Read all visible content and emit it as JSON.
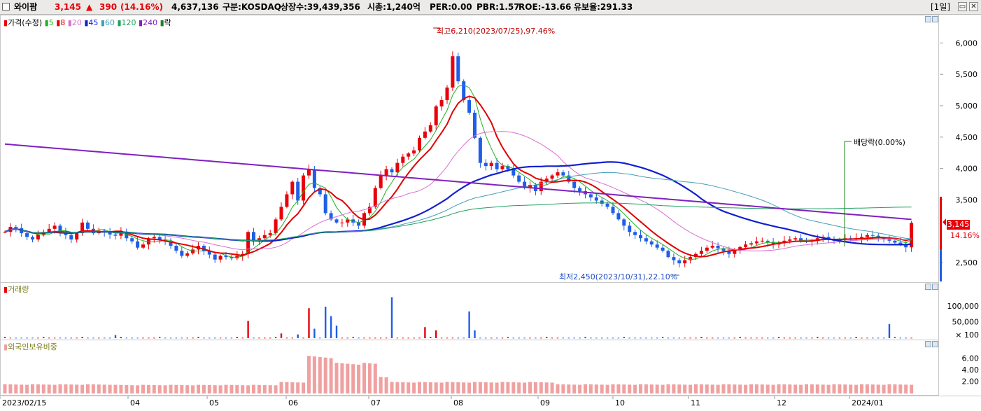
{
  "header": {
    "name": "와이팜",
    "price": "3,145",
    "change_arrow": "▲",
    "change": "390",
    "change_pct": "(14.16%)",
    "volume": "4,637,136",
    "market": "구분:KOSDAQ",
    "shares": "상장수:39,439,356",
    "mcap": "시총:1,240억",
    "per": "PER:0.00",
    "pbr": "PBR:1.57",
    "roe": "ROE:-13.66",
    "float": "유보율:291.33",
    "period": "[1일]",
    "btn_restore": "▭",
    "btn_close": "✕"
  },
  "legend": {
    "price": "가격(수정)",
    "ma5": "5",
    "ma8": "8",
    "ma20": "20",
    "ma45": "45",
    "ma60": "60",
    "ma120": "120",
    "ma240": "240",
    "ex": "락"
  },
  "colors": {
    "up": "#e8000b",
    "down": "#1e5ee8",
    "ma5": "#22b022",
    "ma8": "#e00000",
    "ma20": "#d870d0",
    "ma45": "#1020d0",
    "ma60": "#40a0b8",
    "ma120": "#20a060",
    "ma240": "#8020c0",
    "foreign": "#f0a0a0"
  },
  "annotations": {
    "high": "최고6,210(2023/07/25),97.46%",
    "low": "최저2,450(2023/10/31),22.10%",
    "dividend": "배당락(0.00%)"
  },
  "current": {
    "price_label": "3,145",
    "pct_label": "14.16%"
  },
  "panels": {
    "volume": "거래량",
    "foreign": "외국인보유비중"
  },
  "chart_data": [
    {
      "type": "candlestick",
      "title": "",
      "x_labels": [
        "2023/02/15",
        "04",
        "05",
        "06",
        "07",
        "08",
        "09",
        "10",
        "11",
        "12",
        "2024/01"
      ],
      "yticks": [
        "6,000",
        "5,500",
        "5,000",
        "4,500",
        "4,000",
        "3,500",
        "2,500"
      ],
      "ylim": [
        2200,
        6450
      ],
      "closes": [
        3000,
        3080,
        3060,
        2980,
        2920,
        2880,
        2960,
        3000,
        3050,
        3100,
        3000,
        2950,
        2880,
        2980,
        3150,
        3050,
        2980,
        3020,
        3000,
        2960,
        2940,
        3000,
        2900,
        2850,
        2750,
        2800,
        2900,
        2920,
        2880,
        2850,
        2780,
        2700,
        2620,
        2660,
        2720,
        2780,
        2700,
        2640,
        2560,
        2620,
        2600,
        2580,
        2620,
        2650,
        3000,
        2850,
        2900,
        2950,
        2980,
        3200,
        3400,
        3600,
        3800,
        3500,
        3900,
        4000,
        3700,
        3600,
        3300,
        3200,
        3150,
        3150,
        3200,
        3150,
        3100,
        3300,
        3400,
        3700,
        3900,
        4000,
        3950,
        4100,
        4200,
        4250,
        4300,
        4500,
        4600,
        4700,
        5000,
        5100,
        5300,
        5800,
        5400,
        5100,
        4900,
        4500,
        4100,
        4050,
        4100,
        4000,
        4050,
        4000,
        3900,
        3800,
        3700,
        3750,
        3650,
        3800,
        3850,
        3900,
        3950,
        3900,
        3800,
        3700,
        3650,
        3600,
        3550,
        3500,
        3450,
        3400,
        3300,
        3200,
        3100,
        3000,
        2950,
        2900,
        2850,
        2800,
        2750,
        2700,
        2600,
        2550,
        2500,
        2550,
        2600,
        2650,
        2700,
        2750,
        2780,
        2740,
        2700,
        2650,
        2700,
        2760,
        2800,
        2820,
        2850,
        2860,
        2840,
        2800,
        2820,
        2860,
        2880,
        2900,
        2860,
        2850,
        2870,
        2900,
        2920,
        2880,
        2860,
        2880,
        2900,
        2880,
        2900,
        2920,
        2950,
        2940,
        2900,
        2880,
        2860,
        2830,
        2800,
        2755,
        3145
      ],
      "series": [
        {
          "name": "5",
          "window": 5
        },
        {
          "name": "8",
          "window": 8
        },
        {
          "name": "20",
          "window": 20
        },
        {
          "name": "45",
          "window": 45
        },
        {
          "name": "60",
          "window": 60
        },
        {
          "name": "120",
          "window": 120
        },
        {
          "name": "240",
          "start": 4400,
          "end": 3200
        }
      ]
    },
    {
      "type": "bar",
      "title": "",
      "yticks": [
        "100,000",
        "50,000",
        "× 100"
      ],
      "ylim": [
        0,
        140000
      ],
      "spikes": {
        "20": 10000,
        "44": 55000,
        "50": 15000,
        "53": 12000,
        "55": 95000,
        "56": 30000,
        "58": 100000,
        "59": 70000,
        "60": 40000,
        "70": 130000,
        "76": 35000,
        "78": 25000,
        "84": 85000,
        "85": 25000,
        "160": 45000
      }
    },
    {
      "type": "bar",
      "title": "",
      "yticks": [
        "6.00",
        "4.00",
        "2.00"
      ],
      "ylim": [
        0,
        7.5
      ],
      "levels": [
        [
          0,
          20,
          1.6
        ],
        [
          20,
          50,
          1.5
        ],
        [
          50,
          55,
          2.0
        ],
        [
          55,
          60,
          6.5
        ],
        [
          60,
          68,
          5.3
        ],
        [
          68,
          70,
          3.0
        ],
        [
          70,
          100,
          2.0
        ],
        [
          100,
          165,
          1.6
        ]
      ]
    }
  ]
}
